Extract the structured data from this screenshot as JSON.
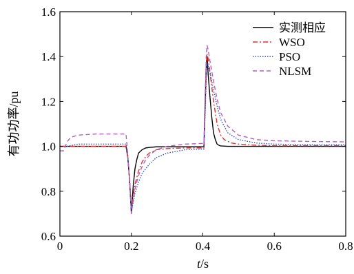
{
  "chart_data": {
    "type": "line",
    "xlabel_italic": "t",
    "xlabel_unit": "/s",
    "ylabel": "有功功率/pu",
    "xlim": [
      0,
      0.8
    ],
    "ylim": [
      0.6,
      1.6
    ],
    "xticks": [
      "0",
      "0.2",
      "0.4",
      "0.6",
      "0.8"
    ],
    "yticks": [
      "0.6",
      "0.8",
      "1.0",
      "1.2",
      "1.4",
      "1.6"
    ],
    "grid": false,
    "legend_position": "top-right",
    "series": [
      {
        "name": "实测相应",
        "color": "#000000",
        "dash": "solid",
        "x": [
          0,
          0.185,
          0.19,
          0.195,
          0.2,
          0.205,
          0.21,
          0.215,
          0.22,
          0.23,
          0.24,
          0.25,
          0.27,
          0.3,
          0.35,
          0.39,
          0.403,
          0.405,
          0.41,
          0.412,
          0.415,
          0.42,
          0.425,
          0.43,
          0.435,
          0.44,
          0.445,
          0.45,
          0.47,
          0.5,
          0.6,
          0.8
        ],
        "y": [
          1.0,
          1.0,
          0.95,
          0.85,
          0.7,
          0.82,
          0.9,
          0.94,
          0.97,
          0.985,
          0.993,
          0.995,
          0.998,
          0.998,
          0.998,
          0.998,
          0.998,
          1.1,
          1.38,
          1.4,
          1.32,
          1.22,
          1.13,
          1.06,
          1.03,
          1.01,
          1.005,
          1.002,
          1.0,
          1.0,
          1.0,
          1.0
        ]
      },
      {
        "name": "WSO",
        "color": "#e03030",
        "dash": "dashdot",
        "x": [
          0,
          0.185,
          0.19,
          0.195,
          0.2,
          0.205,
          0.21,
          0.22,
          0.23,
          0.24,
          0.25,
          0.27,
          0.3,
          0.35,
          0.4,
          0.403,
          0.405,
          0.41,
          0.412,
          0.415,
          0.42,
          0.43,
          0.44,
          0.45,
          0.46,
          0.48,
          0.5,
          0.55,
          0.6,
          0.8
        ],
        "y": [
          1.0,
          1.0,
          0.95,
          0.85,
          0.72,
          0.78,
          0.83,
          0.89,
          0.93,
          0.955,
          0.97,
          0.985,
          0.99,
          0.993,
          0.993,
          0.993,
          1.1,
          1.36,
          1.41,
          1.39,
          1.33,
          1.2,
          1.1,
          1.05,
          1.03,
          1.015,
          1.01,
          1.005,
          1.003,
          1.003
        ]
      },
      {
        "name": "PSO",
        "color": "#3050c0",
        "dash": "dotted",
        "x": [
          0,
          0.02,
          0.05,
          0.1,
          0.15,
          0.185,
          0.19,
          0.195,
          0.2,
          0.205,
          0.21,
          0.22,
          0.23,
          0.25,
          0.27,
          0.3,
          0.35,
          0.4,
          0.403,
          0.405,
          0.41,
          0.412,
          0.415,
          0.42,
          0.43,
          0.44,
          0.45,
          0.47,
          0.5,
          0.55,
          0.6,
          0.7,
          0.8
        ],
        "y": [
          1.0,
          1.0,
          1.01,
          1.01,
          1.01,
          1.01,
          0.96,
          0.85,
          0.72,
          0.75,
          0.79,
          0.84,
          0.88,
          0.92,
          0.95,
          0.97,
          0.985,
          0.988,
          0.988,
          1.08,
          1.32,
          1.37,
          1.36,
          1.33,
          1.25,
          1.18,
          1.12,
          1.06,
          1.03,
          1.015,
          1.01,
          1.007,
          1.007
        ]
      },
      {
        "name": "NLSM",
        "color": "#b060c0",
        "dash": "dashed",
        "x": [
          0,
          0.01,
          0.02,
          0.03,
          0.05,
          0.1,
          0.15,
          0.185,
          0.19,
          0.195,
          0.2,
          0.205,
          0.21,
          0.22,
          0.23,
          0.24,
          0.25,
          0.27,
          0.3,
          0.35,
          0.4,
          0.403,
          0.405,
          0.41,
          0.412,
          0.415,
          0.42,
          0.43,
          0.44,
          0.45,
          0.47,
          0.5,
          0.55,
          0.6,
          0.7,
          0.8
        ],
        "y": [
          0.98,
          0.98,
          1.02,
          1.04,
          1.05,
          1.055,
          1.055,
          1.055,
          0.96,
          0.85,
          0.7,
          0.76,
          0.81,
          0.87,
          0.91,
          0.94,
          0.96,
          0.985,
          1.0,
          1.01,
          1.013,
          1.013,
          1.15,
          1.42,
          1.45,
          1.43,
          1.38,
          1.29,
          1.21,
          1.15,
          1.09,
          1.05,
          1.03,
          1.025,
          1.022,
          1.02
        ]
      }
    ]
  }
}
